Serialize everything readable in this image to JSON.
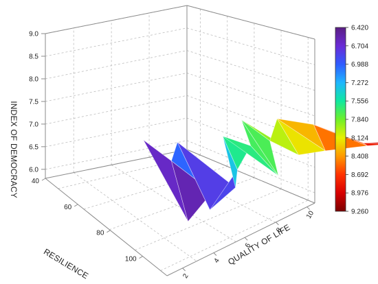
{
  "chart_data": {
    "type": "surface3d",
    "title": "",
    "zlabel": "INDEX OF DEMOCRACY",
    "xlabel": "QUALITY OF LIFE",
    "ylabel": "RESILIENCE",
    "z_ticks": [
      "6.0",
      "6.5",
      "7.0",
      "7.5",
      "8.0",
      "8.5",
      "9.0"
    ],
    "zlim": [
      5.8,
      9.0
    ],
    "x_ticks": [
      "2",
      "4",
      "6",
      "8",
      "10"
    ],
    "xlim": [
      1,
      10.5
    ],
    "y_ticks": [
      "40",
      "60",
      "80",
      "100"
    ],
    "ylim": [
      40,
      115
    ],
    "grid": true,
    "colorbar": {
      "labels": [
        "6.420",
        "6.704",
        "6.988",
        "7.272",
        "7.556",
        "7.840",
        "8.124",
        "8.408",
        "8.692",
        "8.976",
        "9.260"
      ],
      "range": [
        6.42,
        9.26
      ],
      "colors": [
        "#5a1e82",
        "#6a2bd6",
        "#2f5cff",
        "#1fb6ff",
        "#10e8a0",
        "#6ef02a",
        "#e8f000",
        "#ff9a00",
        "#ff3300",
        "#d80000",
        "#7a0000"
      ]
    },
    "surface_points": [
      {
        "quality": 4.0,
        "resilience": 48,
        "democracy": 7.05
      },
      {
        "quality": 4.3,
        "resilience": 60,
        "democracy": 6.95
      },
      {
        "quality": 4.8,
        "resilience": 55,
        "democracy": 7.25
      },
      {
        "quality": 4.2,
        "resilience": 72,
        "democracy": 5.95
      },
      {
        "quality": 4.6,
        "resilience": 80,
        "democracy": 6.85
      },
      {
        "quality": 5.2,
        "resilience": 68,
        "democracy": 6.15
      },
      {
        "quality": 5.3,
        "resilience": 82,
        "democracy": 7.05
      },
      {
        "quality": 5.6,
        "resilience": 78,
        "democracy": 7.35
      },
      {
        "quality": 6.0,
        "resilience": 62,
        "democracy": 7.65
      },
      {
        "quality": 6.3,
        "resilience": 74,
        "democracy": 7.8
      },
      {
        "quality": 6.7,
        "resilience": 84,
        "democracy": 7.45
      },
      {
        "quality": 7.0,
        "resilience": 56,
        "democracy": 7.9
      },
      {
        "quality": 7.2,
        "resilience": 70,
        "democracy": 7.85
      },
      {
        "quality": 7.3,
        "resilience": 86,
        "democracy": 8.0
      },
      {
        "quality": 7.8,
        "resilience": 64,
        "democracy": 8.2
      },
      {
        "quality": 7.9,
        "resilience": 92,
        "democracy": 8.3
      },
      {
        "quality": 8.4,
        "resilience": 76,
        "democracy": 8.45
      },
      {
        "quality": 8.7,
        "resilience": 104,
        "democracy": 8.8
      },
      {
        "quality": 9.0,
        "resilience": 96,
        "democracy": 8.65
      },
      {
        "quality": 9.3,
        "resilience": 110,
        "democracy": 9.05
      },
      {
        "quality": 9.8,
        "resilience": 112,
        "democracy": 9.2
      },
      {
        "quality": 9.9,
        "resilience": 100,
        "democracy": 8.85
      }
    ]
  }
}
